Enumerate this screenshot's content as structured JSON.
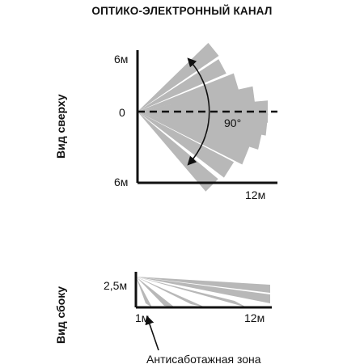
{
  "title": "ОПТИКО-ЭЛЕКТРОННЫЙ КАНАЛ",
  "top_view": {
    "label": "Вид сверху",
    "y_top": "6м",
    "y_mid": "0",
    "y_bottom": "6м",
    "x_end": "12м",
    "angle": "90°"
  },
  "side_view": {
    "label": "Вид сбоку",
    "height": "2,5м",
    "x_start": "1м",
    "x_end": "12м",
    "antisabotage_label": "Антисаботажная зона"
  },
  "colors": {
    "beam": "#b8b8b8",
    "line": "#111111"
  }
}
